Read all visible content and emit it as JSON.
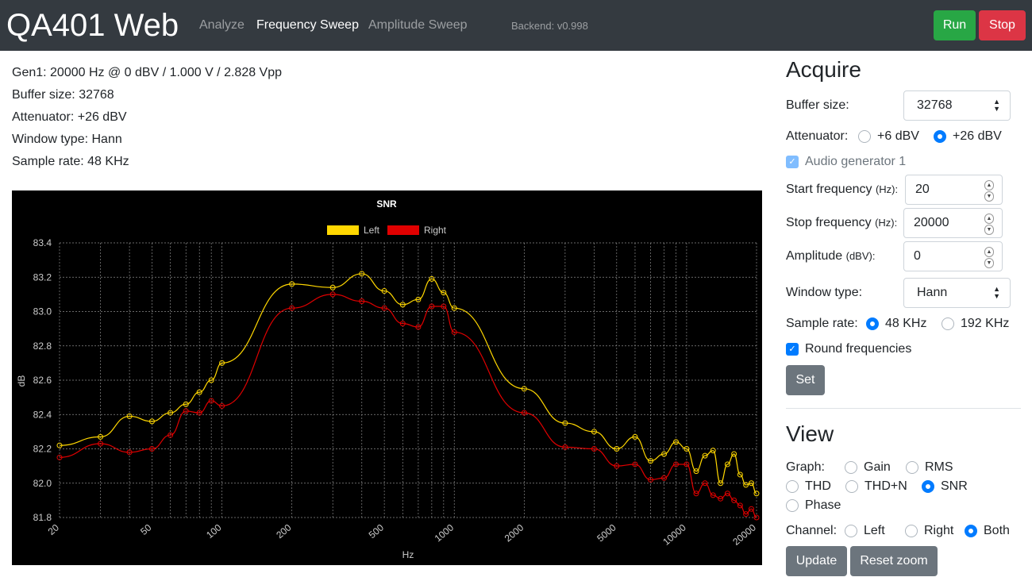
{
  "navbar": {
    "brand": "QA401 Web",
    "links": [
      "Analyze",
      "Frequency Sweep",
      "Amplitude Sweep"
    ],
    "backend": "Backend: v0.998",
    "run_label": "Run",
    "stop_label": "Stop"
  },
  "info": {
    "gen1": "Gen1: 20000 Hz @ 0 dBV / 1.000 V / 2.828 Vpp",
    "buffer": "Buffer size: 32768",
    "attenuator": "Attenuator: +26 dBV",
    "window": "Window type: Hann",
    "sample_rate": "Sample rate: 48 KHz"
  },
  "acquire": {
    "title": "Acquire",
    "buffer_label": "Buffer size:",
    "buffer_value": "32768",
    "attenuator_label": "Attenuator:",
    "att_options": [
      "+6 dBV",
      "+26 dBV"
    ],
    "att_selected": "+26 dBV",
    "gen_label": "Audio generator 1",
    "start_label": "Start frequency",
    "start_unit": "(Hz):",
    "start_value": "20",
    "stop_label": "Stop frequency",
    "stop_unit": "(Hz):",
    "stop_value": "20000",
    "amp_label": "Amplitude",
    "amp_unit": "(dBV):",
    "amp_value": "0",
    "window_label": "Window type:",
    "window_value": "Hann",
    "sample_label": "Sample rate:",
    "sample_options": [
      "48 KHz",
      "192 KHz"
    ],
    "sample_selected": "48 KHz",
    "round_label": "Round frequencies",
    "set_label": "Set"
  },
  "view": {
    "title": "View",
    "graph_label": "Graph:",
    "graph_options": [
      "Gain",
      "RMS",
      "THD",
      "THD+N",
      "SNR",
      "Phase"
    ],
    "graph_selected": "SNR",
    "channel_label": "Channel:",
    "channel_options": [
      "Left",
      "Right",
      "Both"
    ],
    "channel_selected": "Both",
    "update_label": "Update",
    "reset_label": "Reset zoom"
  },
  "colors": {
    "left": "#ffd700",
    "right": "#e00000"
  },
  "chart_data": {
    "type": "line",
    "title": "SNR",
    "xlabel": "Hz",
    "ylabel": "dB",
    "xscale": "log",
    "xlim": [
      20,
      20000
    ],
    "ylim": [
      81.8,
      83.4
    ],
    "yticks": [
      "83.4",
      "83.2",
      "83.0",
      "82.8",
      "82.6",
      "82.4",
      "82.2",
      "82.0",
      "81.8"
    ],
    "xticks": [
      "20",
      "50",
      "100",
      "200",
      "500",
      "1000",
      "2000",
      "5000",
      "10000",
      "20000"
    ],
    "legend": "top",
    "series": [
      {
        "name": "Left",
        "x": [
          20,
          30,
          40,
          50,
          60,
          70,
          80,
          90,
          100,
          200,
          300,
          400,
          500,
          600,
          700,
          800,
          900,
          1000,
          2000,
          3000,
          4000,
          5000,
          6000,
          7000,
          8000,
          9000,
          10000,
          11000,
          12000,
          13000,
          14000,
          15000,
          16000,
          17000,
          18000,
          19000,
          20000
        ],
        "values": [
          82.22,
          82.27,
          82.39,
          82.36,
          82.41,
          82.46,
          82.53,
          82.6,
          82.7,
          83.16,
          83.14,
          83.22,
          83.12,
          83.04,
          83.07,
          83.19,
          83.11,
          83.02,
          82.55,
          82.35,
          82.3,
          82.2,
          82.27,
          82.13,
          82.17,
          82.24,
          82.2,
          82.07,
          82.16,
          82.19,
          82.0,
          82.11,
          82.17,
          82.05,
          81.99,
          82.0,
          81.94
        ]
      },
      {
        "name": "Right",
        "x": [
          20,
          30,
          40,
          50,
          60,
          70,
          80,
          90,
          100,
          200,
          300,
          400,
          500,
          600,
          700,
          800,
          900,
          1000,
          2000,
          3000,
          4000,
          5000,
          6000,
          7000,
          8000,
          9000,
          10000,
          11000,
          12000,
          13000,
          14000,
          15000,
          16000,
          17000,
          18000,
          19000,
          20000
        ],
        "values": [
          82.15,
          82.23,
          82.18,
          82.2,
          82.28,
          82.42,
          82.41,
          82.48,
          82.45,
          83.02,
          83.1,
          83.06,
          83.02,
          82.93,
          82.91,
          83.03,
          83.03,
          82.88,
          82.41,
          82.21,
          82.2,
          82.1,
          82.11,
          82.02,
          82.03,
          82.11,
          82.11,
          81.94,
          82.0,
          81.93,
          81.91,
          81.94,
          81.9,
          81.87,
          81.82,
          81.85,
          81.8
        ]
      }
    ]
  }
}
